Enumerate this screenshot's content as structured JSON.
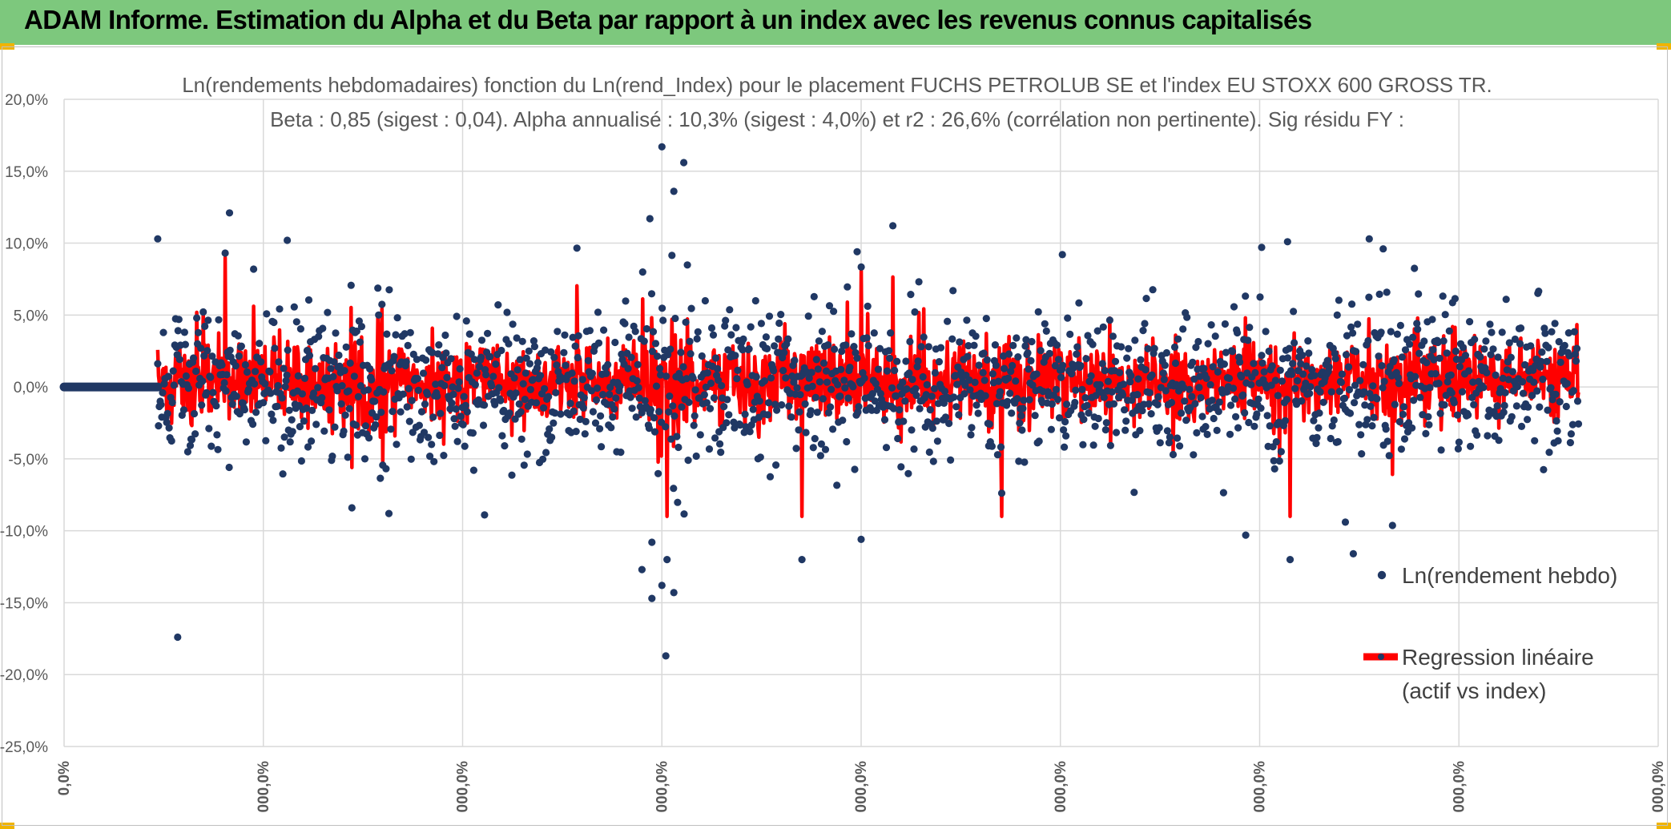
{
  "banner": {
    "title": "ADAM Informe. Estimation du Alpha et du Beta par rapport à un index avec les revenus connus capitalisés"
  },
  "colors": {
    "banner": "#7dc87d",
    "points": "#203864",
    "regression": "#ff0000",
    "grid": "#d9d9d9"
  },
  "chart_data": {
    "type": "scatter",
    "title": "Ln(rendements hebdomadaires) fonction du Ln(rend_Index) pour le placement FUCHS PETROLUB SE et l'index EU STOXX 600 GROSS TR.",
    "subtitle": "Beta : 0,85 (sigest : 0,04). Alpha annualisé : 10,3% (sigest : 4,0%) et r2 : 26,6% (corrélation non pertinente). Sig résidu FY :",
    "y_axis": {
      "min": -25,
      "max": 20,
      "step": 5,
      "tick_labels": [
        "20,0%",
        "15,0%",
        "10,0%",
        "5,0%",
        "0,0%",
        "-5,0%",
        "-10,0%",
        "-15,0%",
        "-20,0%",
        "-25,0%"
      ]
    },
    "x_axis": {
      "ticks": [
        0,
        1,
        2,
        3,
        4,
        5,
        6,
        7,
        8
      ],
      "tick_labels": [
        "0,0%",
        "000,0%",
        "000,0%",
        "000,0%",
        "000,0%",
        "000,0%",
        "000,0%",
        "000,0%",
        "000,0%"
      ]
    },
    "series": [
      {
        "name": "Ln(rendement hebdo)",
        "style": "markers",
        "flat_zero_range": [
          0.0,
          0.47
        ],
        "highlight_points": [
          [
            0.47,
            10.3
          ],
          [
            0.57,
            -17.4
          ],
          [
            0.83,
            12.1
          ],
          [
            3.02,
            -18.7
          ],
          [
            3.0,
            16.7
          ],
          [
            3.11,
            15.6
          ],
          [
            3.06,
            13.6
          ],
          [
            2.95,
            -14.7
          ],
          [
            3.0,
            -13.8
          ],
          [
            3.06,
            -14.3
          ],
          [
            1.12,
            10.2
          ],
          [
            6.55,
            10.3
          ],
          [
            6.14,
            10.1
          ],
          [
            6.01,
            9.7
          ],
          [
            2.94,
            11.7
          ],
          [
            2.95,
            -10.8
          ],
          [
            2.9,
            -12.7
          ],
          [
            5.93,
            -10.3
          ],
          [
            6.43,
            -9.4
          ],
          [
            6.47,
            -11.6
          ],
          [
            6.62,
            9.6
          ],
          [
            4.0,
            -10.6
          ],
          [
            3.98,
            9.4
          ],
          [
            5.01,
            9.2
          ],
          [
            1.63,
            -8.8
          ],
          [
            2.11,
            -8.9
          ]
        ]
      },
      {
        "name": "Regression linéaire (actif vs index)",
        "legend_line1": "Regression linéaire",
        "legend_line2": "(actif vs index)",
        "style": "line"
      }
    ],
    "legend": {
      "position": "right"
    },
    "gridlines": true
  }
}
